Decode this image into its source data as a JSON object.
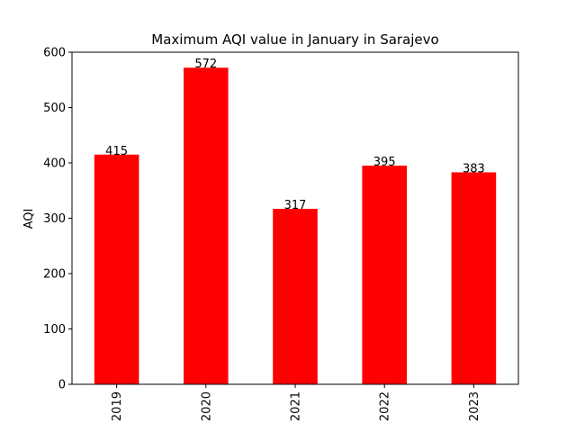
{
  "chart_data": {
    "type": "bar",
    "title": "Maximum AQI value in January in Sarajevo",
    "y_label": "AQI",
    "categories": [
      "2019",
      "2020",
      "2021",
      "2022",
      "2023"
    ],
    "values": [
      415,
      572,
      317,
      395,
      383
    ],
    "color": "#ff0000",
    "ylim": [
      0,
      600
    ],
    "yticks": [
      0,
      100,
      200,
      300,
      400,
      500,
      600
    ]
  }
}
